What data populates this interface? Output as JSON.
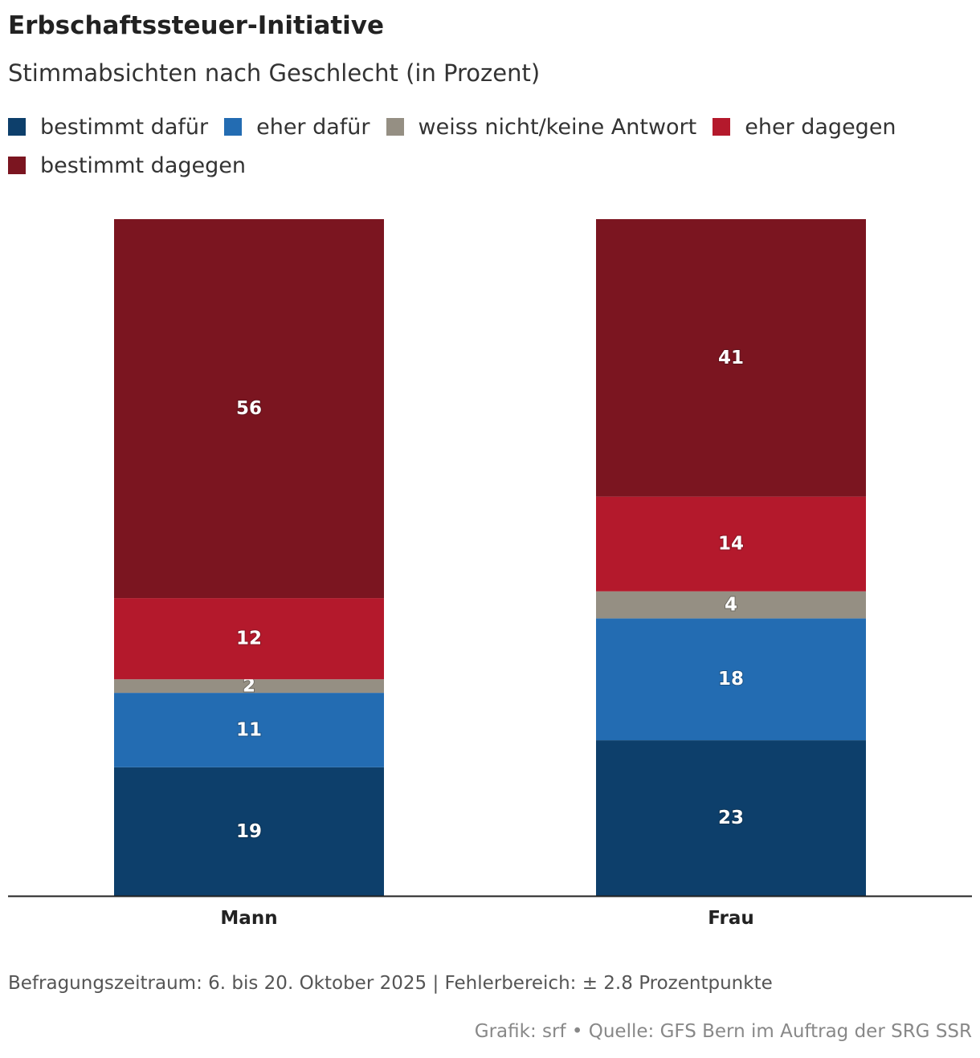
{
  "chart_data": {
    "type": "bar",
    "orientation": "vertical",
    "stacked": true,
    "title": "Erbschaftssteuer-Initiative",
    "subtitle": "Stimmabsichten nach Geschlecht (in Prozent)",
    "xlabel": "",
    "ylabel": "",
    "ylim": [
      0,
      100
    ],
    "grid": false,
    "legend_position": "top-left",
    "categories": [
      "Mann",
      "Frau"
    ],
    "series": [
      {
        "name": "bestimmt dafür",
        "color": "#0d3f6b",
        "values": [
          19,
          23
        ]
      },
      {
        "name": "eher dafür",
        "color": "#236cb2",
        "values": [
          11,
          18
        ]
      },
      {
        "name": "weiss nicht/keine Antwort",
        "color": "#958f83",
        "values": [
          2,
          4
        ]
      },
      {
        "name": "eher dagegen",
        "color": "#b4192c",
        "values": [
          12,
          14
        ]
      },
      {
        "name": "bestimmt dagegen",
        "color": "#7b1520",
        "values": [
          56,
          41
        ]
      }
    ]
  },
  "footnote": "Befragungszeitraum: 6. bis 20. Oktober 2025 | Fehlerbereich: ± 2.8 Prozentpunkte",
  "source": "Grafik: srf • Quelle: GFS Bern im Auftrag der SRG SSR"
}
